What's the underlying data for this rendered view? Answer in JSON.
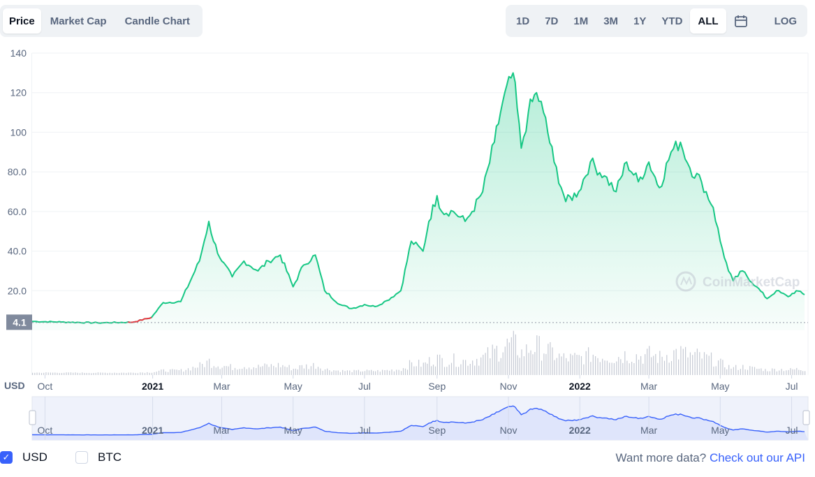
{
  "chart_tabs": [
    {
      "label": "Price",
      "active": true
    },
    {
      "label": "Market Cap",
      "active": false
    },
    {
      "label": "Candle Chart",
      "active": false
    }
  ],
  "ranges": [
    {
      "label": "1D",
      "active": false
    },
    {
      "label": "7D",
      "active": false
    },
    {
      "label": "1M",
      "active": false
    },
    {
      "label": "3M",
      "active": false
    },
    {
      "label": "1Y",
      "active": false
    },
    {
      "label": "YTD",
      "active": false
    },
    {
      "label": "ALL",
      "active": true
    }
  ],
  "calendar_icon": "calendar-icon",
  "log_label": "LOG",
  "watermark": "CoinMarketCap",
  "current_price_label": "4.1",
  "volume_axis_label": "USD",
  "colors": {
    "line": "#16c784",
    "down_segment": "#ea3943",
    "nav_line": "#3861fb",
    "nav_fill": "#dfe5fb",
    "accent": "#3861fb"
  },
  "currency_toggles": [
    {
      "label": "USD",
      "checked": true
    },
    {
      "label": "BTC",
      "checked": false
    }
  ],
  "cta": {
    "text": "Want more data?",
    "link": "Check out our API"
  },
  "chart_data": {
    "type": "area",
    "series": [
      {
        "x": [
          "2020-09-20",
          "2020-10-15",
          "2020-11-15",
          "2020-12-15",
          "2020-12-31",
          "2021-01-10",
          "2021-01-25",
          "2021-02-10",
          "2021-02-18",
          "2021-02-22",
          "2021-03-01",
          "2021-03-10",
          "2021-03-20",
          "2021-04-01",
          "2021-04-10",
          "2021-04-20",
          "2021-05-01",
          "2021-05-10",
          "2021-05-20",
          "2021-05-28",
          "2021-06-10",
          "2021-06-20",
          "2021-07-01",
          "2021-07-10",
          "2021-07-20",
          "2021-08-01",
          "2021-08-10",
          "2021-08-20",
          "2021-08-25",
          "2021-09-01",
          "2021-09-05",
          "2021-09-15",
          "2021-09-25",
          "2021-10-01",
          "2021-10-10",
          "2021-10-20",
          "2021-10-27",
          "2021-11-05",
          "2021-11-12",
          "2021-11-18",
          "2021-11-25",
          "2021-12-01",
          "2021-12-10",
          "2021-12-20",
          "2021-12-31",
          "2022-01-10",
          "2022-01-22",
          "2022-02-01",
          "2022-02-10",
          "2022-02-20",
          "2022-03-01",
          "2022-03-10",
          "2022-03-20",
          "2022-03-28",
          "2022-04-05",
          "2022-04-15",
          "2022-04-25",
          "2022-05-01",
          "2022-05-08",
          "2022-05-12",
          "2022-05-20",
          "2022-06-01",
          "2022-06-10",
          "2022-06-18",
          "2022-06-28",
          "2022-07-05",
          "2022-07-12"
        ],
        "values": [
          4.5,
          4.2,
          3.8,
          4.1,
          6.5,
          14,
          14.5,
          35,
          55,
          45,
          35,
          27,
          35,
          30,
          35,
          38,
          22,
          33,
          38,
          20,
          13,
          11,
          13,
          12,
          15,
          20,
          45,
          40,
          55,
          68,
          60,
          60,
          55,
          60,
          70,
          95,
          115,
          130,
          92,
          110,
          120,
          110,
          85,
          65,
          70,
          85,
          78,
          70,
          85,
          75,
          85,
          72,
          90,
          95,
          82,
          75,
          62,
          45,
          30,
          25,
          30,
          22,
          16,
          20,
          17,
          20,
          18
        ]
      }
    ],
    "x_ticks": [
      "Oct",
      "2021",
      "Mar",
      "May",
      "Jul",
      "Sep",
      "Nov",
      "2022",
      "Mar",
      "May",
      "Jul"
    ],
    "y_ticks": [
      "20.0",
      "40.0",
      "60.0",
      "80.0",
      "100",
      "120",
      "140"
    ],
    "ylim": [
      0,
      140
    ],
    "xlim": [
      "2020-09-20",
      "2022-07-15"
    ],
    "grid": true,
    "volume": {
      "type": "bar",
      "note_visible": false
    }
  }
}
